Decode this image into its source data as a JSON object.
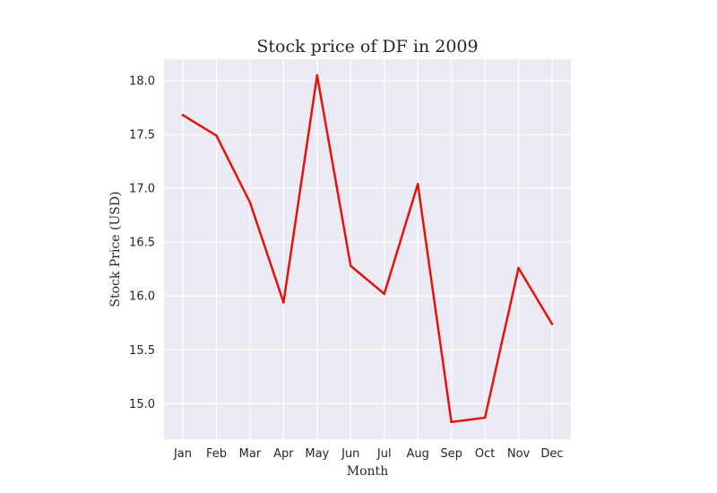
{
  "chart_data": {
    "type": "line",
    "title": "Stock price of DF in 2009",
    "xlabel": "Month",
    "ylabel": "Stock Price (USD)",
    "categories": [
      "Jan",
      "Feb",
      "Mar",
      "Apr",
      "May",
      "Jun",
      "Jul",
      "Aug",
      "Sep",
      "Oct",
      "Nov",
      "Dec"
    ],
    "series": [
      {
        "values": [
          17.68,
          17.49,
          16.87,
          15.94,
          18.05,
          16.28,
          16.02,
          17.04,
          14.83,
          14.87,
          16.26,
          15.74
        ],
        "color": "#e8110a"
      }
    ],
    "ylim": [
      14.67,
      18.2
    ],
    "yticks": [
      "15.0",
      "15.5",
      "16.0",
      "16.5",
      "17.0",
      "17.5",
      "18.0"
    ],
    "grid": true,
    "background": "#eaeaf2"
  }
}
